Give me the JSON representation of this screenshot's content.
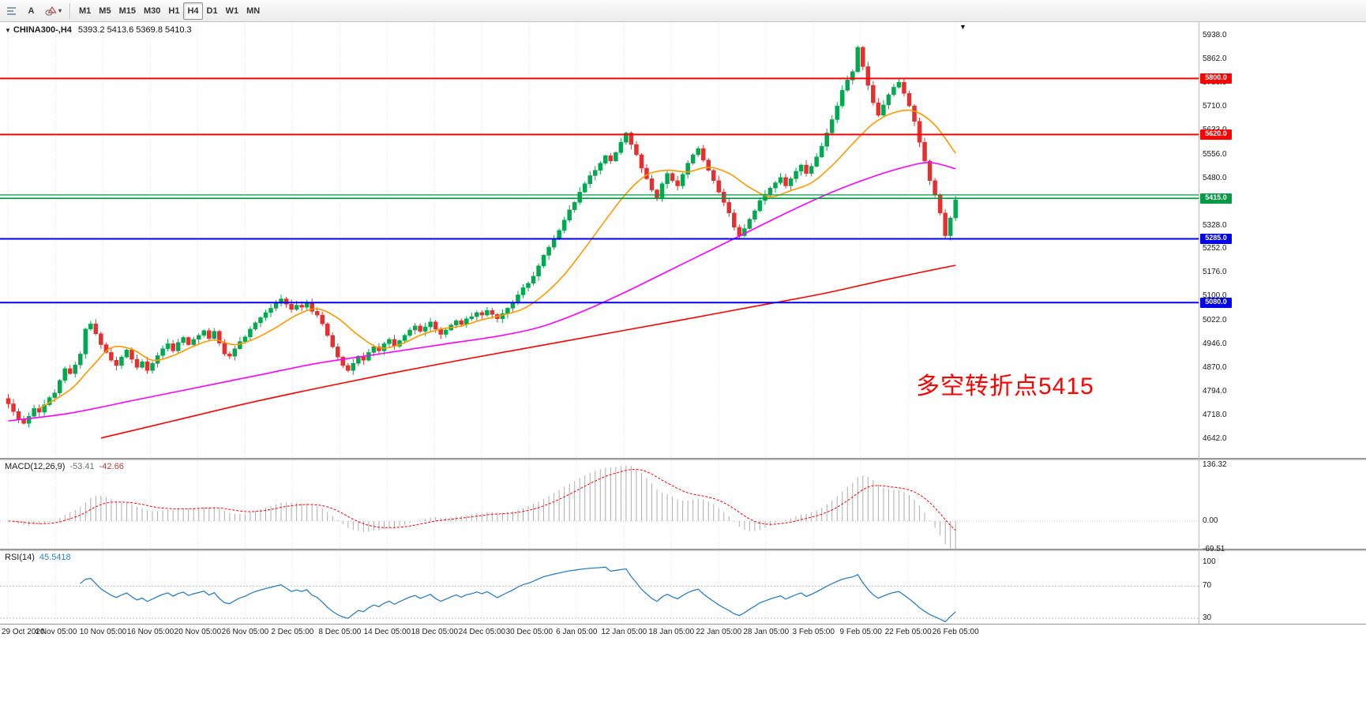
{
  "toolbar": {
    "text_tool_label": "A",
    "timeframes": [
      "M1",
      "M5",
      "M15",
      "M30",
      "H1",
      "H4",
      "D1",
      "W1",
      "MN"
    ],
    "active_timeframe": "H4"
  },
  "chart": {
    "symbol_tf": "CHINA300-,H4",
    "ohlc_text": "5393.2 5413.6 5369.8 5410.3",
    "annotation_text": "多空转折点5415",
    "annotation_color": "#FF0000"
  },
  "macd": {
    "label": "MACD(12,26,9)",
    "value_main": "-53.41",
    "value_signal": "-42.66",
    "axis_ticks": [
      "136.32",
      "0.00",
      "-69.51"
    ]
  },
  "rsi": {
    "label": "RSI(14)",
    "value": "45.5418",
    "axis_ticks": [
      "100",
      "70",
      "30"
    ]
  },
  "chart_data": [
    {
      "type": "candlestick",
      "title": "CHINA300- H4",
      "last_ohlc": {
        "open": 5393.2,
        "high": 5413.6,
        "low": 5369.8,
        "close": 5410.3
      },
      "ylim": [
        4642,
        5938
      ],
      "y_ticks": [
        5938.0,
        5862.0,
        5786.0,
        5710.0,
        5633.0,
        5556.0,
        5480.0,
        5404.0,
        5328.0,
        5252.0,
        5176.0,
        5100.0,
        5022.0,
        4946.0,
        4870.0,
        4794.0,
        4718.0,
        4642.0
      ],
      "x_ticks": [
        "29 Oct 2020",
        "4 Nov 05:00",
        "10 Nov 05:00",
        "16 Nov 05:00",
        "20 Nov 05:00",
        "26 Nov 05:00",
        "2 Dec 05:00",
        "8 Dec 05:00",
        "14 Dec 05:00",
        "18 Dec 05:00",
        "24 Dec 05:00",
        "30 Dec 05:00",
        "6 Jan 05:00",
        "12 Jan 05:00",
        "18 Jan 05:00",
        "22 Jan 05:00",
        "28 Jan 05:00",
        "3 Feb 05:00",
        "9 Feb 05:00",
        "22 Feb 05:00",
        "26 Feb 05:00"
      ],
      "up_color": "#00A94F",
      "down_color": "#E53030",
      "first_open": 4772,
      "closes": [
        4755,
        4730,
        4705,
        4692,
        4715,
        4740,
        4728,
        4752,
        4775,
        4790,
        4830,
        4868,
        4852,
        4880,
        4915,
        4995,
        5012,
        4980,
        4945,
        4920,
        4895,
        4878,
        4905,
        4928,
        4898,
        4872,
        4890,
        4862,
        4885,
        4910,
        4932,
        4948,
        4925,
        4952,
        4968,
        4945,
        4962,
        4975,
        4990,
        4965,
        4988,
        4950,
        4915,
        4908,
        4932,
        4955,
        4970,
        4995,
        5015,
        5032,
        5048,
        5062,
        5078,
        5092,
        5075,
        5058,
        5072,
        5065,
        5080,
        5052,
        5040,
        5012,
        4975,
        4938,
        4905,
        4878,
        4862,
        4885,
        4908,
        4895,
        4920,
        4938,
        4925,
        4948,
        4962,
        4940,
        4958,
        4975,
        4992,
        5005,
        4988,
        5002,
        5018,
        4995,
        4978,
        4992,
        5008,
        5022,
        5010,
        5028,
        5035,
        5048,
        5040,
        5055,
        5042,
        5028,
        5045,
        5062,
        5080,
        5105,
        5128,
        5142,
        5165,
        5198,
        5232,
        5258,
        5285,
        5312,
        5345,
        5378,
        5402,
        5435,
        5462,
        5488,
        5505,
        5528,
        5552,
        5535,
        5562,
        5595,
        5625,
        5588,
        5555,
        5512,
        5478,
        5442,
        5415,
        5462,
        5495,
        5472,
        5455,
        5492,
        5528,
        5555,
        5575,
        5538,
        5505,
        5472,
        5435,
        5402,
        5368,
        5322,
        5295,
        5318,
        5348,
        5375,
        5408,
        5428,
        5448,
        5465,
        5482,
        5455,
        5478,
        5502,
        5522,
        5495,
        5518,
        5548,
        5582,
        5625,
        5668,
        5712,
        5762,
        5795,
        5822,
        5900,
        5838,
        5778,
        5722,
        5682,
        5715,
        5748,
        5772,
        5788,
        5752,
        5712,
        5662,
        5595,
        5535,
        5472,
        5425,
        5368,
        5295,
        5352,
        5410
      ],
      "horizontal_levels": [
        {
          "price": 5800.0,
          "label": "5800.0",
          "color": "#FF0000",
          "width": 2
        },
        {
          "price": 5620.0,
          "label": "5620.0",
          "color": "#FF0000",
          "width": 2
        },
        {
          "price": 5426.0,
          "label": "",
          "color": "#009944",
          "width": 1.2
        },
        {
          "price": 5415.0,
          "label": "5415.0",
          "color": "#009944",
          "width": 1.8
        },
        {
          "price": 5285.0,
          "label": "5285.0",
          "color": "#0000EE",
          "width": 2
        },
        {
          "price": 5080.0,
          "label": "5080.0",
          "color": "#0000EE",
          "width": 2
        }
      ],
      "moving_averages": [
        {
          "name": "ma-fast",
          "color": "#FF9900",
          "points": [
            [
              6,
              4740
            ],
            [
              12,
              4800
            ],
            [
              16,
              4870
            ],
            [
              20,
              4935
            ],
            [
              24,
              4930
            ],
            [
              28,
              4895
            ],
            [
              32,
              4910
            ],
            [
              36,
              4940
            ],
            [
              40,
              4960
            ],
            [
              44,
              4945
            ],
            [
              48,
              4965
            ],
            [
              52,
              5000
            ],
            [
              56,
              5040
            ],
            [
              60,
              5060
            ],
            [
              64,
              5030
            ],
            [
              68,
              4975
            ],
            [
              72,
              4935
            ],
            [
              76,
              4945
            ],
            [
              80,
              4975
            ],
            [
              84,
              4995
            ],
            [
              88,
              5005
            ],
            [
              92,
              5025
            ],
            [
              96,
              5040
            ],
            [
              100,
              5060
            ],
            [
              104,
              5105
            ],
            [
              108,
              5170
            ],
            [
              112,
              5255
            ],
            [
              116,
              5345
            ],
            [
              120,
              5430
            ],
            [
              124,
              5490
            ],
            [
              128,
              5505
            ],
            [
              132,
              5500
            ],
            [
              136,
              5515
            ],
            [
              140,
              5495
            ],
            [
              144,
              5450
            ],
            [
              148,
              5420
            ],
            [
              152,
              5440
            ],
            [
              156,
              5465
            ],
            [
              160,
              5520
            ],
            [
              164,
              5590
            ],
            [
              168,
              5655
            ],
            [
              172,
              5690
            ],
            [
              176,
              5695
            ],
            [
              180,
              5650
            ],
            [
              184,
              5560
            ]
          ]
        },
        {
          "name": "ma-medium",
          "color": "#FF00FF",
          "points": [
            [
              0,
              4700
            ],
            [
              12,
              4725
            ],
            [
              24,
              4765
            ],
            [
              36,
              4805
            ],
            [
              48,
              4845
            ],
            [
              60,
              4885
            ],
            [
              72,
              4915
            ],
            [
              84,
              4945
            ],
            [
              96,
              4975
            ],
            [
              104,
              5005
            ],
            [
              112,
              5055
            ],
            [
              120,
              5115
            ],
            [
              128,
              5180
            ],
            [
              136,
              5245
            ],
            [
              144,
              5310
            ],
            [
              152,
              5375
            ],
            [
              160,
              5435
            ],
            [
              168,
              5485
            ],
            [
              174,
              5515
            ],
            [
              179,
              5530
            ],
            [
              184,
              5510
            ]
          ]
        },
        {
          "name": "ma-slow",
          "color": "#FF0000",
          "points": [
            [
              18,
              4645
            ],
            [
              32,
              4700
            ],
            [
              46,
              4755
            ],
            [
              60,
              4805
            ],
            [
              74,
              4852
            ],
            [
              88,
              4896
            ],
            [
              102,
              4938
            ],
            [
              116,
              4980
            ],
            [
              130,
              5022
            ],
            [
              144,
              5065
            ],
            [
              158,
              5108
            ],
            [
              170,
              5152
            ],
            [
              178,
              5180
            ],
            [
              184,
              5200
            ]
          ]
        }
      ]
    },
    {
      "type": "macd",
      "params": [
        12,
        26,
        9
      ],
      "values_shown": [
        -53.41,
        -42.66
      ],
      "axis_ticks": [
        136.32,
        0.0,
        -69.51
      ],
      "histogram_color": "#ADADB2",
      "signal_color": "#FF0000",
      "signal_style": "dashed"
    },
    {
      "type": "rsi",
      "period": 14,
      "value_shown": 45.5418,
      "levels": [
        70,
        30
      ],
      "axis_ticks": [
        100,
        70,
        30
      ],
      "line_color": "#2E7FC2"
    }
  ]
}
